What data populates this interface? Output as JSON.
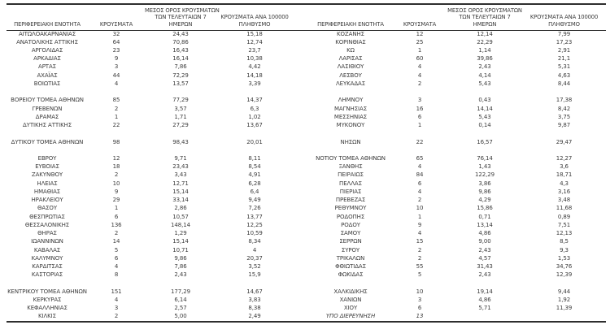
{
  "colors": {
    "text": "#3c3c3c",
    "rule": "#2e2e2e",
    "background": "#ffffff"
  },
  "tables": [
    {
      "id": "left",
      "headers": [
        {
          "lines": [
            "ΠΕΡΙΦΕΡΕΙΑΚΗ ΕΝΟΤΗΤΑ"
          ]
        },
        {
          "lines": [
            "ΚΡΟΥΣΜΑΤΑ"
          ]
        },
        {
          "lines": [
            "ΜΕΣΟΣ ΟΡΟΣ ΚΡΟΥΣΜΑΤΩΝ",
            "ΤΩΝ ΤΕΛΕΥΤΑΙΩΝ 7",
            "ΗΜΕΡΩΝ"
          ]
        },
        {
          "lines": [
            "ΚΡΟΥΣΜΑΤΑ ΑΝΑ 100000",
            "ΠΛΗΘΥΣΜΟ"
          ]
        }
      ],
      "rows": [
        {
          "cells": [
            "ΑΙΤΩΛΟΑΚΑΡΝΑΝΙΑΣ",
            "32",
            "24,43",
            "15,18"
          ]
        },
        {
          "cells": [
            "ΑΝΑΤΟΛΙΚΗΣ ΑΤΤΙΚΗΣ",
            "64",
            "70,86",
            "12,74"
          ]
        },
        {
          "cells": [
            "ΑΡΓΟΛΙΔΑΣ",
            "23",
            "16,43",
            "23,7"
          ]
        },
        {
          "cells": [
            "ΑΡΚΑΔΙΑΣ",
            "9",
            "16,14",
            "10,38"
          ]
        },
        {
          "cells": [
            "ΑΡΤΑΣ",
            "3",
            "7,86",
            "4,42"
          ]
        },
        {
          "cells": [
            "ΑΧΑΪΑΣ",
            "44",
            "72,29",
            "14,18"
          ]
        },
        {
          "cells": [
            "ΒΟΙΩΤΙΑΣ",
            "4",
            "13,57",
            "3,39"
          ]
        },
        {
          "spacer": true
        },
        {
          "cells": [
            "ΒΟΡΕΙΟΥ ΤΟΜΕΑ ΑΘΗΝΩΝ",
            "85",
            "77,29",
            "14,37"
          ]
        },
        {
          "cells": [
            "ΓΡΕΒΕΝΩΝ",
            "2",
            "3,57",
            "6,3"
          ]
        },
        {
          "cells": [
            "ΔΡΑΜΑΣ",
            "1",
            "1,71",
            "1,02"
          ]
        },
        {
          "cells": [
            "ΔΥΤΙΚΗΣ ΑΤΤΙΚΗΣ",
            "22",
            "27,29",
            "13,67"
          ]
        },
        {
          "spacer": true
        },
        {
          "cells": [
            "ΔΥΤΙΚΟΥ ΤΟΜΕΑ ΑΘΗΝΩΝ",
            "98",
            "98,43",
            "20,01"
          ]
        },
        {
          "spacer": true
        },
        {
          "cells": [
            "ΕΒΡΟΥ",
            "12",
            "9,71",
            "8,11"
          ]
        },
        {
          "cells": [
            "ΕΥΒΟΙΑΣ",
            "18",
            "23,43",
            "8,54"
          ]
        },
        {
          "cells": [
            "ΖΑΚΥΝΘΟΥ",
            "2",
            "3,43",
            "4,91"
          ]
        },
        {
          "cells": [
            "ΗΛΕΙΑΣ",
            "10",
            "12,71",
            "6,28"
          ]
        },
        {
          "cells": [
            "ΗΜΑΘΙΑΣ",
            "9",
            "15,14",
            "6,4"
          ]
        },
        {
          "cells": [
            "ΗΡΑΚΛΕΙΟΥ",
            "29",
            "33,14",
            "9,49"
          ]
        },
        {
          "cells": [
            "ΘΑΣΟΥ",
            "1",
            "2,86",
            "7,26"
          ]
        },
        {
          "cells": [
            "ΘΕΣΠΡΩΤΙΑΣ",
            "6",
            "10,57",
            "13,77"
          ]
        },
        {
          "cells": [
            "ΘΕΣΣΑΛΟΝΙΚΗΣ",
            "136",
            "148,14",
            "12,25"
          ]
        },
        {
          "cells": [
            "ΘΗΡΑΣ",
            "2",
            "1,29",
            "10,59"
          ]
        },
        {
          "cells": [
            "ΙΩΑΝΝΙΝΩΝ",
            "14",
            "15,14",
            "8,34"
          ]
        },
        {
          "cells": [
            "ΚΑΒΑΛΑΣ",
            "5",
            "10,71",
            "4"
          ]
        },
        {
          "cells": [
            "ΚΑΛΥΜΝΟΥ",
            "6",
            "9,86",
            "20,37"
          ]
        },
        {
          "cells": [
            "ΚΑΡΔΙΤΣΑΣ",
            "4",
            "7,86",
            "3,52"
          ]
        },
        {
          "cells": [
            "ΚΑΣΤΟΡΙΑΣ",
            "8",
            "2,43",
            "15,9"
          ]
        },
        {
          "spacer": true
        },
        {
          "cells": [
            "ΚΕΝΤΡΙΚΟΥ ΤΟΜΕΑ ΑΘΗΝΩΝ",
            "151",
            "177,29",
            "14,67"
          ]
        },
        {
          "cells": [
            "ΚΕΡΚΥΡΑΣ",
            "4",
            "6,14",
            "3,83"
          ]
        },
        {
          "cells": [
            "ΚΕΦΑΛΛΗΝΙΑΣ",
            "3",
            "2,57",
            "8,38"
          ]
        },
        {
          "cells": [
            "ΚΙΛΚΙΣ",
            "2",
            "5,00",
            "2,49"
          ]
        }
      ]
    },
    {
      "id": "right",
      "headers": [
        {
          "lines": [
            "ΠΕΡΙΦΕΡΕΙΑΚΗ ΕΝΟΤΗΤΑ"
          ]
        },
        {
          "lines": [
            "ΚΡΟΥΣΜΑΤΑ"
          ]
        },
        {
          "lines": [
            "ΜΕΣΟΣ ΟΡΟΣ ΚΡΟΥΣΜΑΤΩΝ",
            "ΤΩΝ ΤΕΛΕΥΤΑΙΩΝ 7",
            "ΗΜΕΡΩΝ"
          ]
        },
        {
          "lines": [
            "ΚΡΟΥΣΜΑΤΑ ΑΝΑ 100000",
            "ΠΛΗΘΥΣΜΟ"
          ]
        }
      ],
      "rows": [
        {
          "cells": [
            "ΚΟΖΑΝΗΣ",
            "12",
            "12,14",
            "7,99"
          ]
        },
        {
          "cells": [
            "ΚΟΡΙΝΘΙΑΣ",
            "25",
            "22,29",
            "17,23"
          ]
        },
        {
          "cells": [
            "ΚΩ",
            "1",
            "1,14",
            "2,91"
          ]
        },
        {
          "cells": [
            "ΛΑΡΙΣΑΣ",
            "60",
            "39,86",
            "21,1"
          ]
        },
        {
          "cells": [
            "ΛΑΣΙΘΙΟΥ",
            "4",
            "2,43",
            "5,31"
          ]
        },
        {
          "cells": [
            "ΛΕΣΒΟΥ",
            "4",
            "4,14",
            "4,63"
          ]
        },
        {
          "cells": [
            "ΛΕΥΚΑΔΑΣ",
            "2",
            "5,43",
            "8,44"
          ]
        },
        {
          "spacer": true
        },
        {
          "cells": [
            "ΛΗΜΝΟΥ",
            "3",
            "0,43",
            "17,38"
          ]
        },
        {
          "cells": [
            "ΜΑΓΝΗΣΙΑΣ",
            "16",
            "14,14",
            "8,42"
          ]
        },
        {
          "cells": [
            "ΜΕΣΣΗΝΙΑΣ",
            "6",
            "5,43",
            "3,75"
          ]
        },
        {
          "cells": [
            "ΜΥΚΟΝΟΥ",
            "1",
            "0,14",
            "9,87"
          ]
        },
        {
          "spacer": true
        },
        {
          "cells": [
            "ΝΗΣΩΝ",
            "22",
            "16,57",
            "29,47"
          ]
        },
        {
          "spacer": true
        },
        {
          "cells": [
            "ΝΟΤΙΟΥ ΤΟΜΕΑ ΑΘΗΝΩΝ",
            "65",
            "76,14",
            "12,27"
          ]
        },
        {
          "cells": [
            "ΞΑΝΘΗΣ",
            "4",
            "1,43",
            "3,6"
          ]
        },
        {
          "cells": [
            "ΠΕΙΡΑΙΩΣ",
            "84",
            "122,29",
            "18,71"
          ]
        },
        {
          "cells": [
            "ΠΕΛΛΑΣ",
            "6",
            "3,86",
            "4,3"
          ]
        },
        {
          "cells": [
            "ΠΙΕΡΙΑΣ",
            "4",
            "9,86",
            "3,16"
          ]
        },
        {
          "cells": [
            "ΠΡΕΒΕΖΑΣ",
            "2",
            "4,29",
            "3,48"
          ]
        },
        {
          "cells": [
            "ΡΕΘΥΜΝΟΥ",
            "10",
            "15,86",
            "11,68"
          ]
        },
        {
          "cells": [
            "ΡΟΔΟΠΗΣ",
            "1",
            "0,71",
            "0,89"
          ]
        },
        {
          "cells": [
            "ΡΟΔΟΥ",
            "9",
            "13,14",
            "7,51"
          ]
        },
        {
          "cells": [
            "ΣΑΜΟΥ",
            "4",
            "4,86",
            "12,13"
          ]
        },
        {
          "cells": [
            "ΣΕΡΡΩΝ",
            "15",
            "9,00",
            "8,5"
          ]
        },
        {
          "cells": [
            "ΣΥΡΟΥ",
            "2",
            "2,43",
            "9,3"
          ]
        },
        {
          "cells": [
            "ΤΡΙΚΑΛΩΝ",
            "2",
            "4,57",
            "1,53"
          ]
        },
        {
          "cells": [
            "ΦΘΙΩΤΙΔΑΣ",
            "55",
            "31,43",
            "34,76"
          ]
        },
        {
          "cells": [
            "ΦΩΚΙΔΑΣ",
            "5",
            "2,43",
            "12,39"
          ]
        },
        {
          "spacer": true
        },
        {
          "cells": [
            "ΧΑΛΚΙΔΙΚΗΣ",
            "10",
            "19,14",
            "9,44"
          ]
        },
        {
          "cells": [
            "ΧΑΝΙΩΝ",
            "3",
            "4,86",
            "1,92"
          ]
        },
        {
          "cells": [
            "ΧΙΟΥ",
            "6",
            "5,71",
            "11,39"
          ]
        },
        {
          "cells": [
            "ΥΠΟ ΔΙΕΡΕΥΝΗΣΗ",
            "13",
            "",
            ""
          ],
          "italic": true
        }
      ]
    }
  ]
}
